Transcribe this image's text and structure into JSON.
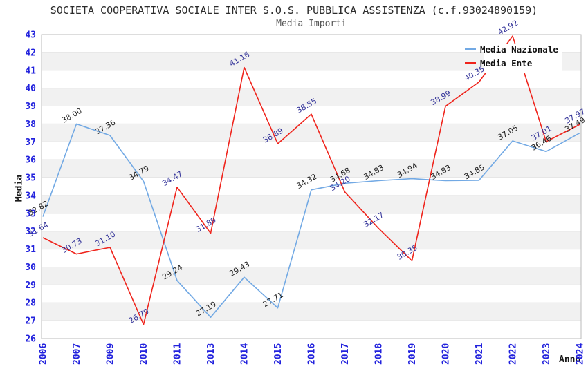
{
  "chart_data": {
    "type": "line",
    "title": "SOCIETA COOPERATIVA SOCIALE INTER S.O.S. PUBBLICA ASSISTENZA (c.f.93024890159)",
    "subtitle": "Media Importi",
    "xlabel": "Anno",
    "ylabel": "Media",
    "ylim": [
      26,
      43
    ],
    "y_tick_step": 1,
    "grid": "horizontal-bands",
    "legend_position": "top-right",
    "categories": [
      "2006",
      "2007",
      "2009",
      "2010",
      "2011",
      "2013",
      "2014",
      "2015",
      "2016",
      "2017",
      "2018",
      "2019",
      "2020",
      "2021",
      "2022",
      "2023",
      "2024"
    ],
    "series": [
      {
        "name": "Media Nazionale",
        "color": "#72A9E4",
        "label_color": "#1f1f1f",
        "values": [
          32.82,
          38.0,
          37.36,
          34.79,
          29.24,
          27.19,
          29.43,
          27.71,
          34.32,
          34.68,
          34.83,
          34.94,
          34.83,
          34.85,
          37.05,
          36.46,
          37.49
        ]
      },
      {
        "name": "Media Ente",
        "color": "#EF241C",
        "label_color": "#333399",
        "values": [
          31.64,
          30.73,
          31.1,
          26.79,
          34.47,
          31.89,
          41.16,
          36.89,
          38.55,
          34.2,
          32.17,
          30.35,
          38.99,
          40.35,
          42.92,
          37.01,
          37.97
        ]
      }
    ],
    "style": {
      "tick_label_color": "#2222DD",
      "band_color": "#F1F1F1",
      "grid_color": "#DBDBDB",
      "border_color": "#BBBBBB",
      "title_color": "#2B2B2B",
      "subtitle_color": "#565656"
    }
  }
}
